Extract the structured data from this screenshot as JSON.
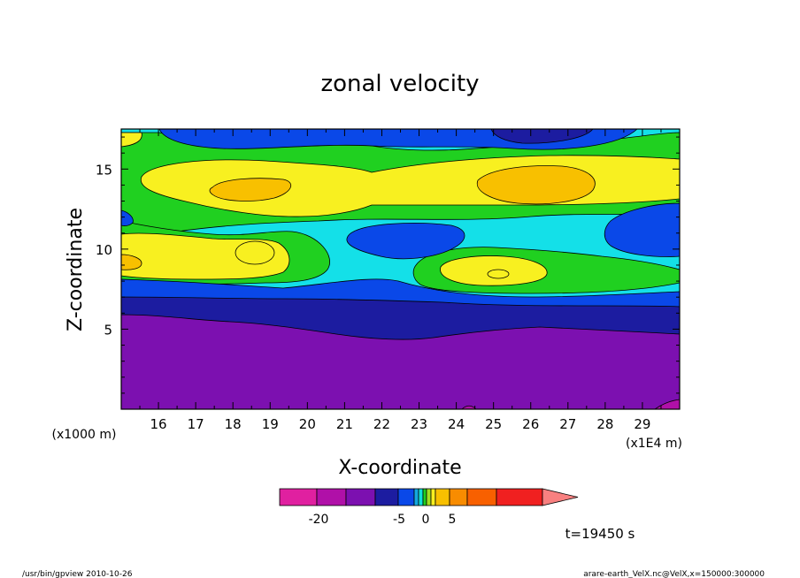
{
  "chart_data": {
    "type": "heatmap",
    "title": "zonal velocity",
    "xlabel": "X-coordinate",
    "ylabel": "Z-coordinate",
    "x_unit_label": "(x1E4 m)",
    "y_unit_label": "(x1000 m)",
    "x_ticks": [
      16,
      17,
      18,
      19,
      20,
      21,
      22,
      23,
      24,
      25,
      26,
      27,
      28,
      29
    ],
    "y_ticks": [
      5,
      10,
      15
    ],
    "xlim": [
      15.0,
      30.0
    ],
    "ylim": [
      0.0,
      17.5
    ],
    "grid": false,
    "time_label": "t=19450 s",
    "colorbar": {
      "colors": [
        "#e020a0",
        "#b010a8",
        "#7c10b0",
        "#1c1ca0",
        "#0a48e8",
        "#14a8e0",
        "#10e0d8",
        "#20d020",
        "#a0e020",
        "#f8f020",
        "#f8c000",
        "#f88c00",
        "#f86000",
        "#f02020",
        "#f88080"
      ],
      "tick_labels": [
        "-20",
        "-5",
        "0",
        "5"
      ]
    },
    "regions": [
      {
        "name": "purple",
        "color": "#7c10b0",
        "y_range": [
          0,
          6
        ]
      },
      {
        "name": "dark-blue",
        "color": "#1c1ca0",
        "y_range": [
          4.5,
          7
        ]
      },
      {
        "name": "blue",
        "color": "#0a48e8",
        "y_range": [
          6,
          8
        ]
      },
      {
        "name": "green",
        "color": "#20d020",
        "y_range": [
          8,
          16
        ]
      },
      {
        "name": "yellow",
        "color": "#f8f020",
        "y_range": [
          9,
          15
        ]
      },
      {
        "name": "orange-max",
        "color": "#f8c000",
        "x_center": 26.3,
        "y_center": 14.2
      }
    ]
  },
  "footer": {
    "left": "/usr/bin/gpview   2010-10-26",
    "right": "arare-earth_VelX.nc@VelX,x=150000:300000"
  }
}
